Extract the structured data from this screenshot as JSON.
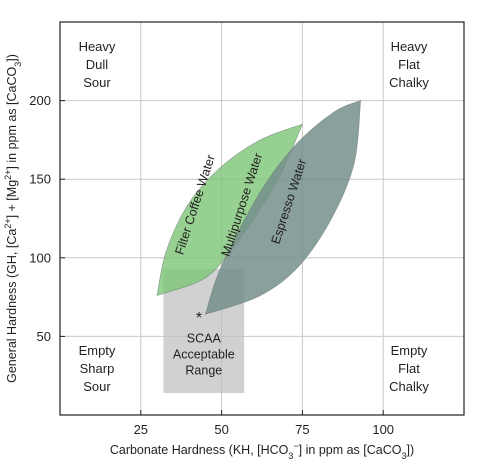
{
  "chart_data": {
    "type": "area",
    "xlabel_parts": {
      "prefix": "Carbonate Hardness (KH, [HCO",
      "sub": "3",
      "sup": "−",
      "suffix": "] in ppm as [CaCO",
      "sub2": "3",
      "end": "])"
    },
    "ylabel_parts": {
      "prefix": "General Hardness (GH, [Ca",
      "sup1": "2+",
      "mid1": "] + [Mg",
      "sup2": "2+",
      "mid2": "] in ppm as [CaCO",
      "sub": "3",
      "end": "])"
    },
    "xlim": [
      0,
      125
    ],
    "ylim": [
      0,
      250
    ],
    "xticks": [
      25,
      50,
      75,
      100
    ],
    "yticks": [
      50,
      100,
      150,
      200
    ],
    "grid": true,
    "colors": {
      "filter": "#7cc576",
      "multipurpose": "#4e9e5a",
      "espresso": "#748f8b",
      "scaa": "#bdbdbd",
      "grid": "#c8c8c8"
    },
    "corner_labels": {
      "top_left": [
        "Heavy",
        "Dull",
        "Sour"
      ],
      "top_right": [
        "Heavy",
        "Flat",
        "Chalky"
      ],
      "bottom_left": [
        "Empty",
        "Sharp",
        "Sour"
      ],
      "bottom_right": [
        "Empty",
        "Flat",
        "Chalky"
      ]
    },
    "regions": [
      {
        "name": "Filter Coffee Water",
        "color_key": "filter",
        "opacity": 0.8,
        "label_at": [
          43,
          133
        ],
        "label_angle": -72,
        "upper": [
          [
            30,
            76
          ],
          [
            33,
            105
          ],
          [
            40,
            135
          ],
          [
            50,
            158
          ],
          [
            62,
            175
          ],
          [
            75,
            185
          ]
        ],
        "lower": [
          [
            75,
            185
          ],
          [
            68,
            152
          ],
          [
            60,
            125
          ],
          [
            52,
            102
          ],
          [
            44,
            86
          ],
          [
            30,
            76
          ]
        ]
      },
      {
        "name": "Espresso Water",
        "color_key": "espresso",
        "opacity": 0.85,
        "label_at": [
          72,
          135
        ],
        "label_angle": -72,
        "upper": [
          [
            45,
            64
          ],
          [
            50,
            95
          ],
          [
            62,
            142
          ],
          [
            73,
            172
          ],
          [
            85,
            193
          ],
          [
            93,
            200
          ]
        ],
        "lower": [
          [
            93,
            200
          ],
          [
            91,
            160
          ],
          [
            84,
            125
          ],
          [
            74,
            95
          ],
          [
            62,
            76
          ],
          [
            45,
            64
          ]
        ]
      },
      {
        "name": "Multipurpose Water",
        "label_at": [
          57.5,
          133
        ],
        "label_angle": -72
      }
    ],
    "scaa_region": {
      "label": [
        "SCAA",
        "Acceptable",
        "Range"
      ],
      "x": [
        32,
        57
      ],
      "y": [
        14,
        93
      ],
      "opacity": 0.7
    },
    "markers": [
      {
        "symbol": "*",
        "x": 43,
        "y": 63
      }
    ]
  }
}
